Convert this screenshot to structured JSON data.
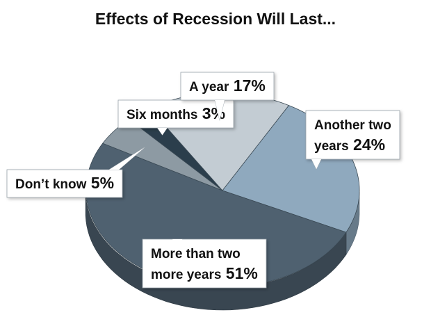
{
  "chart_data": {
    "type": "pie",
    "title": "Effects of Recession Will Last...",
    "slices": [
      {
        "label": "Six months",
        "value": 3,
        "display": "3%",
        "color": "#2b3e4c"
      },
      {
        "label": "A year",
        "value": 17,
        "display": "17%",
        "color": "#c3ccd3"
      },
      {
        "label": "Another two years",
        "value": 24,
        "display": "24%",
        "color": "#8fa9be"
      },
      {
        "label": "More than two more years",
        "value": 51,
        "display": "51%",
        "color": "#4f6170"
      },
      {
        "label": "Don’t know",
        "value": 5,
        "display": "5%",
        "color": "#8d9aa3"
      }
    ],
    "label_lines": [
      [
        "Six months"
      ],
      [
        "A year"
      ],
      [
        "Another two",
        "years"
      ],
      [
        "More than two",
        "more years"
      ],
      [
        "Don’t know"
      ]
    ]
  }
}
